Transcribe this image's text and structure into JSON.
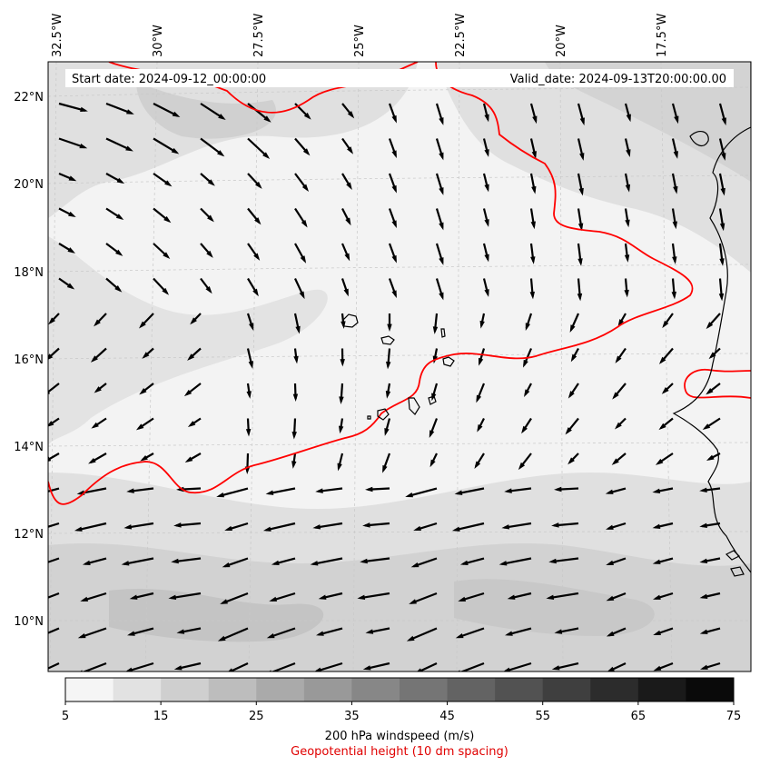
{
  "header": {
    "start_date": "Start date: 2024-09-12_00:00:00",
    "valid_date": "Valid_date: 2024-09-13T20:00:00.00"
  },
  "axes": {
    "lon_labels": [
      "32.5°W",
      "30°W",
      "27.5°W",
      "25°W",
      "22.5°W",
      "20°W",
      "17.5°W"
    ],
    "lat_labels": [
      "22°N",
      "20°N",
      "18°N",
      "16°N",
      "14°N",
      "12°N",
      "10°N"
    ]
  },
  "colorbar": {
    "ticks": [
      "5",
      "15",
      "25",
      "35",
      "45",
      "55",
      "65",
      "75"
    ],
    "colors": [
      "#f5f5f5",
      "#e2e2e2",
      "#cfcfcf",
      "#bdbdbd",
      "#aaaaaa",
      "#999999",
      "#878787",
      "#757575",
      "#636363",
      "#525252",
      "#3f3f3f",
      "#2c2c2c",
      "#1a1a1a",
      "#0a0a0a"
    ],
    "label": "200 hPa windspeed (m/s)",
    "sublabel": "Geopotential height (10 dm spacing)"
  },
  "colors": {
    "contour": "#ff0000",
    "coast": "#000000"
  },
  "icons": [
    "wind-arrow-icon"
  ]
}
